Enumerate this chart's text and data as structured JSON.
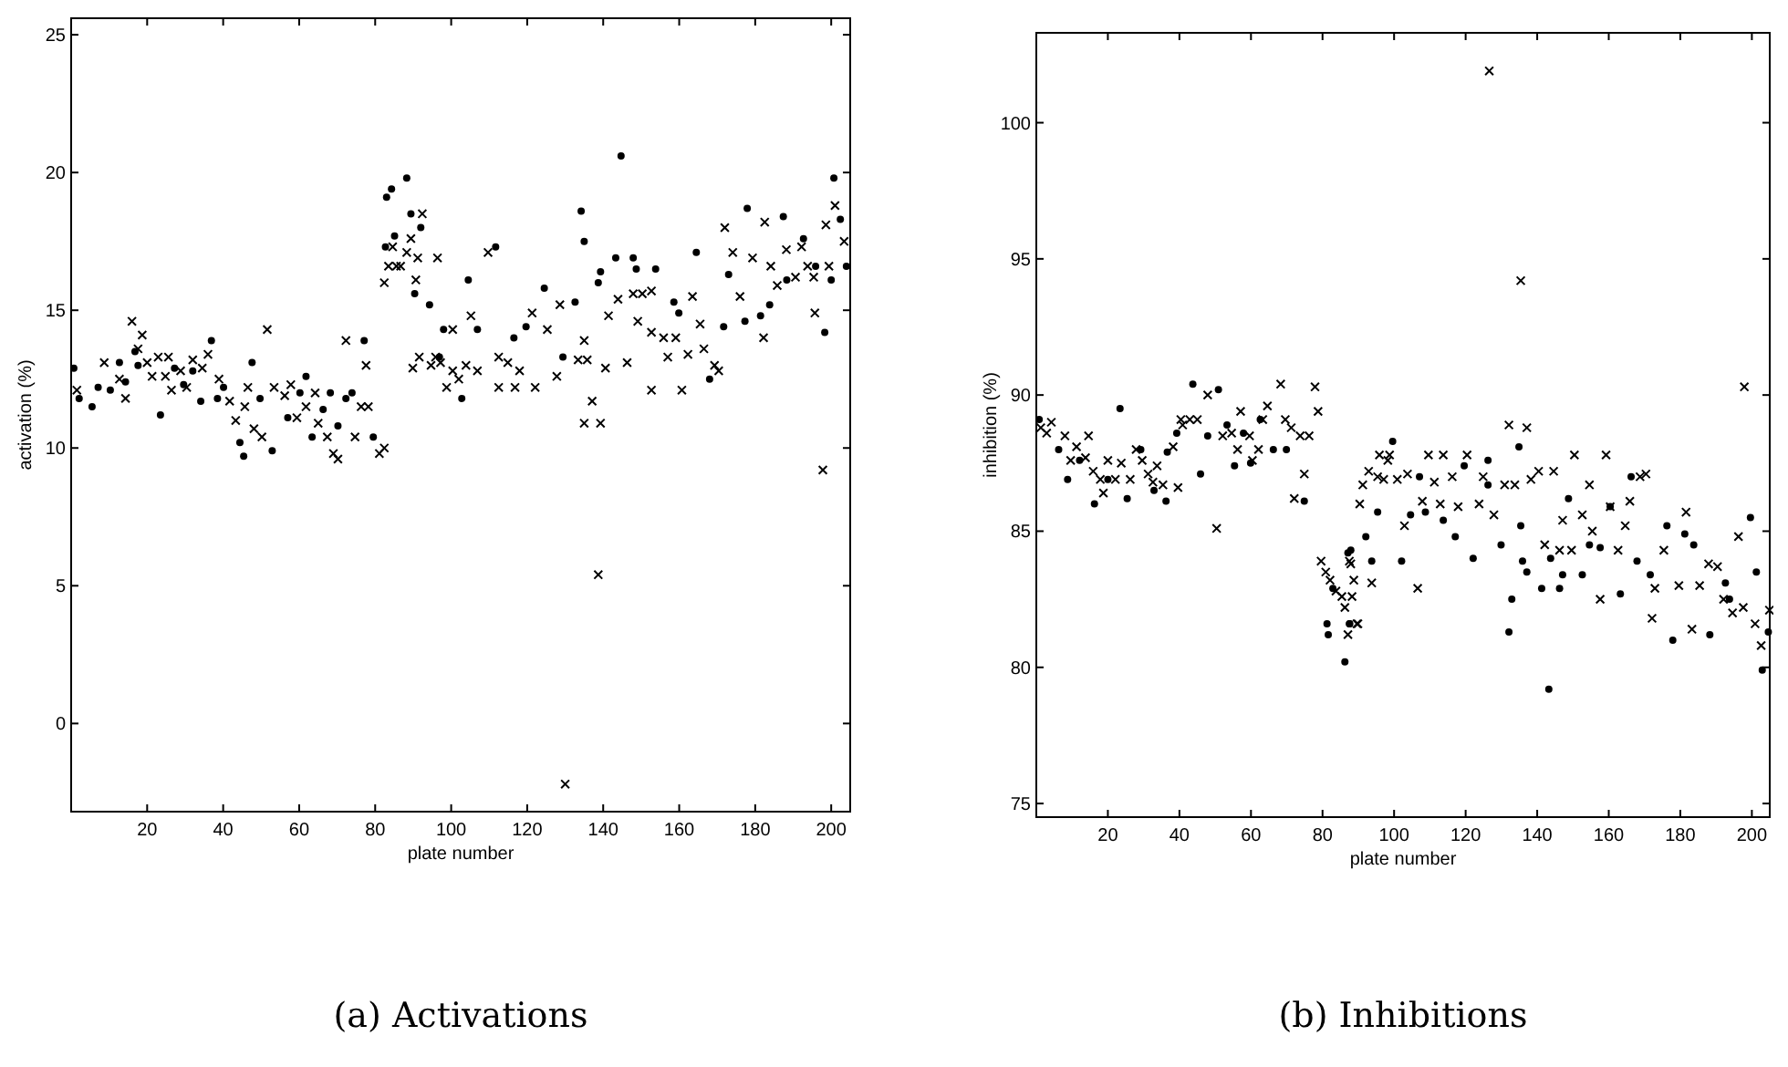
{
  "chart_data": [
    {
      "type": "scatter",
      "title": "(a) Activations",
      "xlabel": "plate number",
      "ylabel": "activation (%)",
      "xlim": [
        0,
        205
      ],
      "ylim": [
        -3.2,
        25.6
      ],
      "xticks": [
        20,
        40,
        60,
        80,
        100,
        120,
        140,
        160,
        180,
        200
      ],
      "yticks": [
        0,
        5,
        10,
        15,
        20,
        25
      ],
      "grid": false,
      "series": [
        {
          "color": "#000000",
          "marker": "cross",
          "x": [
            1.5,
            8.7,
            12.7,
            14.3,
            16,
            17.6,
            18.7,
            20,
            21.3,
            22.9,
            24.8,
            25.6,
            26.4,
            28.8,
            30.4,
            32,
            34.5,
            36,
            38.9,
            41.7,
            43.3,
            45.7,
            46.5,
            48.1,
            50.2,
            51.6,
            53.4,
            56.2,
            57.8,
            59.4,
            61.8,
            64.2,
            65,
            67.4,
            69,
            70.2,
            72.3,
            74.7,
            76.3,
            77.6,
            78.2,
            81.1,
            82.4,
            82.4,
            83.5,
            84.6,
            85.6,
            86.7,
            88.3,
            89.4,
            90.7,
            91.2,
            92.4,
            96.4,
            91.6,
            89.9,
            94.7,
            95.9,
            98.8,
            100.4,
            97.2,
            100.4,
            102,
            103.9,
            106.9,
            109.7,
            105.2,
            112.5,
            114.9,
            112.5,
            116.8,
            118,
            121.3,
            122.1,
            125.3,
            127.8,
            128.6,
            130,
            133.4,
            135.8,
            135,
            137.1,
            135,
            139.3,
            138.7,
            140.6,
            143.9,
            141.4,
            146.3,
            147.9,
            150.3,
            152.7,
            149.1,
            152.7,
            155.9,
            157,
            159.1,
            152.7,
            160.7,
            163.5,
            165.5,
            162.3,
            166.5,
            169.3,
            170.4,
            172,
            174.1,
            176,
            179.3,
            182.5,
            184.1,
            182.2,
            185.8,
            188.2,
            190.6,
            192.2,
            195.4,
            195.7,
            197.8,
            198.6,
            201,
            203.4,
            199.4,
            193.8
          ],
          "values": [
            12.1,
            13.1,
            12.5,
            11.8,
            14.6,
            13.6,
            14.1,
            13.1,
            12.6,
            13.3,
            12.6,
            13.3,
            12.1,
            12.8,
            12.2,
            13.2,
            12.9,
            13.4,
            12.5,
            11.7,
            11,
            11.5,
            12.2,
            10.7,
            10.4,
            14.3,
            12.2,
            11.9,
            12.3,
            11.1,
            11.5,
            12,
            10.9,
            10.4,
            9.8,
            9.6,
            13.9,
            10.4,
            11.5,
            13,
            11.5,
            9.8,
            10,
            16,
            16.6,
            17.3,
            16.6,
            16.6,
            17.1,
            17.6,
            16.1,
            16.9,
            18.5,
            16.9,
            13.3,
            12.9,
            13,
            13.3,
            12.2,
            14.3,
            13.1,
            12.8,
            12.5,
            13,
            12.8,
            17.1,
            14.8,
            13.3,
            13.1,
            12.2,
            12.2,
            12.8,
            14.9,
            12.2,
            14.3,
            12.6,
            15.2,
            -2.2,
            13.2,
            13.2,
            13.9,
            11.7,
            10.9,
            10.9,
            5.4,
            12.9,
            15.4,
            14.8,
            13.1,
            15.6,
            15.6,
            15.7,
            14.6,
            14.2,
            14,
            13.3,
            14,
            12.1,
            12.1,
            15.5,
            14.5,
            13.4,
            13.6,
            13,
            12.8,
            18,
            17.1,
            15.5,
            16.9,
            18.2,
            16.6,
            14,
            15.9,
            17.2,
            16.2,
            17.3,
            16.2,
            14.9,
            9.2,
            18.1,
            18.8,
            17.5,
            16.6,
            16.6
          ]
        },
        {
          "color": "#000000",
          "marker": "circle",
          "x": [
            0.7,
            2.1,
            5.5,
            7.1,
            10.3,
            12.7,
            14.3,
            16.8,
            17.6,
            23.5,
            27.2,
            29.6,
            32,
            34.1,
            36.9,
            38.5,
            40.1,
            44.4,
            45.4,
            47.6,
            49.7,
            52.9,
            57,
            60.2,
            61.8,
            63.4,
            66.3,
            68.2,
            70.2,
            72.3,
            73.9,
            77.1,
            79.5,
            82.7,
            83,
            84.3,
            85.1,
            88.3,
            89.4,
            90.4,
            92,
            94.3,
            96.9,
            104.5,
            106.9,
            98,
            102.8,
            111.7,
            116.5,
            119.7,
            124.5,
            129.4,
            132.6,
            134.2,
            135,
            138.7,
            139.3,
            144.7,
            143.3,
            147.9,
            148.7,
            153.8,
            158.6,
            159.9,
            164.5,
            168,
            171.7,
            173,
            177.3,
            177.9,
            181.4,
            183.8,
            187.4,
            188.3,
            192.7,
            195.9,
            198.3,
            200,
            200.7,
            202.4,
            204
          ],
          "values": [
            12.9,
            11.8,
            11.5,
            12.2,
            12.1,
            13.1,
            12.4,
            13.5,
            13,
            11.2,
            12.9,
            12.3,
            12.8,
            11.7,
            13.9,
            11.8,
            12.2,
            10.2,
            9.7,
            13.1,
            11.8,
            9.9,
            11.1,
            12,
            12.6,
            10.4,
            11.4,
            12,
            10.8,
            11.8,
            12,
            13.9,
            10.4,
            17.3,
            19.1,
            19.4,
            17.7,
            19.8,
            18.5,
            15.6,
            18,
            15.2,
            13.3,
            16.1,
            14.3,
            14.3,
            11.8,
            17.3,
            14,
            14.4,
            15.8,
            13.3,
            15.3,
            18.6,
            17.5,
            16,
            16.4,
            20.6,
            16.9,
            16.9,
            16.5,
            16.5,
            15.3,
            14.9,
            17.1,
            12.5,
            14.4,
            16.3,
            14.6,
            18.7,
            14.8,
            15.2,
            18.4,
            16.1,
            17.6,
            16.6,
            14.2,
            16.1,
            19.8,
            18.3,
            16.6
          ]
        }
      ]
    },
    {
      "type": "scatter",
      "title": "(b) Inhibitions",
      "xlabel": "plate number",
      "ylabel": "inhibition (%)",
      "xlim": [
        0,
        205
      ],
      "ylim": [
        74.5,
        103.3
      ],
      "xticks": [
        20,
        40,
        60,
        80,
        100,
        120,
        140,
        160,
        180,
        200
      ],
      "yticks": [
        75,
        80,
        85,
        90,
        95,
        100
      ],
      "grid": false,
      "series": [
        {
          "color": "#000000",
          "marker": "cross",
          "x": [
            1.25,
            2.9,
            4.2,
            8,
            9.6,
            11.25,
            13.75,
            14.6,
            15.9,
            17.9,
            18.75,
            20,
            22.1,
            23.75,
            26.25,
            27.9,
            29.6,
            31.25,
            32.6,
            33.75,
            35.4,
            38.25,
            39.6,
            40.4,
            42.9,
            45,
            40.9,
            47.9,
            50.4,
            52.1,
            54.6,
            57.1,
            56.25,
            59.6,
            60.4,
            62.1,
            63.3,
            64.6,
            68.3,
            69.6,
            71.25,
            73.75,
            72.1,
            74.9,
            76.25,
            77.9,
            78.75,
            79.6,
            80.9,
            82.1,
            83.75,
            85.4,
            87.5,
            88.75,
            89.6,
            90.4,
            86.25,
            87.1,
            88.25,
            87.9,
            89.9,
            93.75,
            91.25,
            92.9,
            95.4,
            98.25,
            98.75,
            95.9,
            97.1,
            100.9,
            102.9,
            106.6,
            103.75,
            107.9,
            109.6,
            111.25,
            113.75,
            112.9,
            116.25,
            117.9,
            120.4,
            123.75,
            124.9,
            126.6,
            127.9,
            130.9,
            132.1,
            133.75,
            135.4,
            137.1,
            138.25,
            140.4,
            142.1,
            144.6,
            146.25,
            147.1,
            149.6,
            150.4,
            152.6,
            154.6,
            155.4,
            157.6,
            159.25,
            160.4,
            162.6,
            164.6,
            165.9,
            168.75,
            170.4,
            172.1,
            175.4,
            172.9,
            179.6,
            181.6,
            183.25,
            185.4,
            187.9,
            190.4,
            192.1,
            194.6,
            196.25,
            197.9,
            197.6,
            200.9,
            202.6,
            204.9
          ],
          "values": [
            88.8,
            88.6,
            89,
            88.5,
            87.6,
            88.1,
            87.7,
            88.5,
            87.2,
            86.9,
            86.4,
            87.6,
            86.9,
            87.5,
            86.9,
            88,
            87.6,
            87.1,
            86.8,
            87.4,
            86.7,
            88.1,
            86.6,
            89.1,
            89.1,
            89.1,
            88.9,
            90,
            85.1,
            88.5,
            88.6,
            89.4,
            88,
            88.5,
            87.6,
            88,
            89.1,
            89.6,
            90.4,
            89.1,
            88.8,
            88.5,
            86.2,
            87.1,
            88.5,
            90.3,
            89.4,
            83.9,
            83.5,
            83.2,
            82.8,
            82.6,
            83.9,
            83.2,
            81.6,
            86,
            82.2,
            81.2,
            82.6,
            83.8,
            81.6,
            83.1,
            86.7,
            87.2,
            87,
            87.6,
            87.8,
            87.8,
            86.9,
            86.9,
            85.2,
            82.9,
            87.1,
            86.1,
            87.8,
            86.8,
            87.8,
            86,
            87,
            85.9,
            87.8,
            86,
            87,
            101.9,
            85.6,
            86.7,
            88.9,
            86.7,
            94.2,
            88.8,
            86.9,
            87.2,
            84.5,
            87.2,
            84.3,
            85.4,
            84.3,
            87.8,
            85.6,
            86.7,
            85,
            82.5,
            87.8,
            85.9,
            84.3,
            85.2,
            86.1,
            87,
            87.1,
            81.8,
            84.3,
            82.9,
            83,
            85.7,
            81.4,
            83,
            83.8,
            83.7,
            82.5,
            82,
            84.8,
            90.3,
            82.2,
            81.6,
            80.8,
            82.1
          ]
        },
        {
          "color": "#000000",
          "marker": "circle",
          "x": [
            0.8,
            6.25,
            8.75,
            12.1,
            16.25,
            20,
            23.4,
            25.4,
            29.2,
            32.9,
            36.25,
            36.6,
            39.25,
            43.75,
            45.9,
            47.9,
            50.9,
            53.3,
            55.4,
            57.9,
            59.9,
            62.6,
            66.25,
            69.9,
            74.9,
            81.25,
            81.6,
            86.25,
            87.1,
            82.9,
            87.5,
            87.6,
            87.9,
            92.1,
            93.75,
            95.4,
            99.6,
            102.1,
            104.6,
            107.1,
            108.75,
            113.75,
            117.1,
            119.6,
            122.1,
            126.25,
            126.25,
            129.9,
            132.1,
            132.9,
            134.9,
            135.4,
            135.9,
            137.1,
            141.25,
            143.25,
            143.75,
            146.25,
            147.1,
            148.75,
            152.6,
            154.6,
            157.6,
            160.4,
            163.25,
            166.25,
            167.9,
            171.6,
            176.25,
            177.9,
            181.25,
            183.75,
            188.25,
            192.6,
            193.75,
            199.6,
            201.25,
            202.9,
            204.6
          ],
          "values": [
            89.1,
            88,
            86.9,
            87.6,
            86,
            86.9,
            89.5,
            86.2,
            88,
            86.5,
            86.1,
            87.9,
            88.6,
            90.4,
            87.1,
            88.5,
            90.2,
            88.9,
            87.4,
            88.6,
            87.5,
            89.1,
            88,
            88,
            86.1,
            81.6,
            81.2,
            80.2,
            84.2,
            82.9,
            81.6,
            81.6,
            84.3,
            84.8,
            83.9,
            85.7,
            88.3,
            83.9,
            85.6,
            87,
            85.7,
            85.4,
            84.8,
            87.4,
            84,
            87.6,
            86.7,
            84.5,
            81.3,
            82.5,
            88.1,
            85.2,
            83.9,
            83.5,
            82.9,
            79.2,
            84,
            82.9,
            83.4,
            86.2,
            83.4,
            84.5,
            84.4,
            85.9,
            82.7,
            87,
            83.9,
            83.4,
            85.2,
            81,
            84.9,
            84.5,
            81.2,
            83.1,
            82.5,
            85.5,
            83.5,
            79.9,
            81.3
          ]
        }
      ]
    }
  ]
}
